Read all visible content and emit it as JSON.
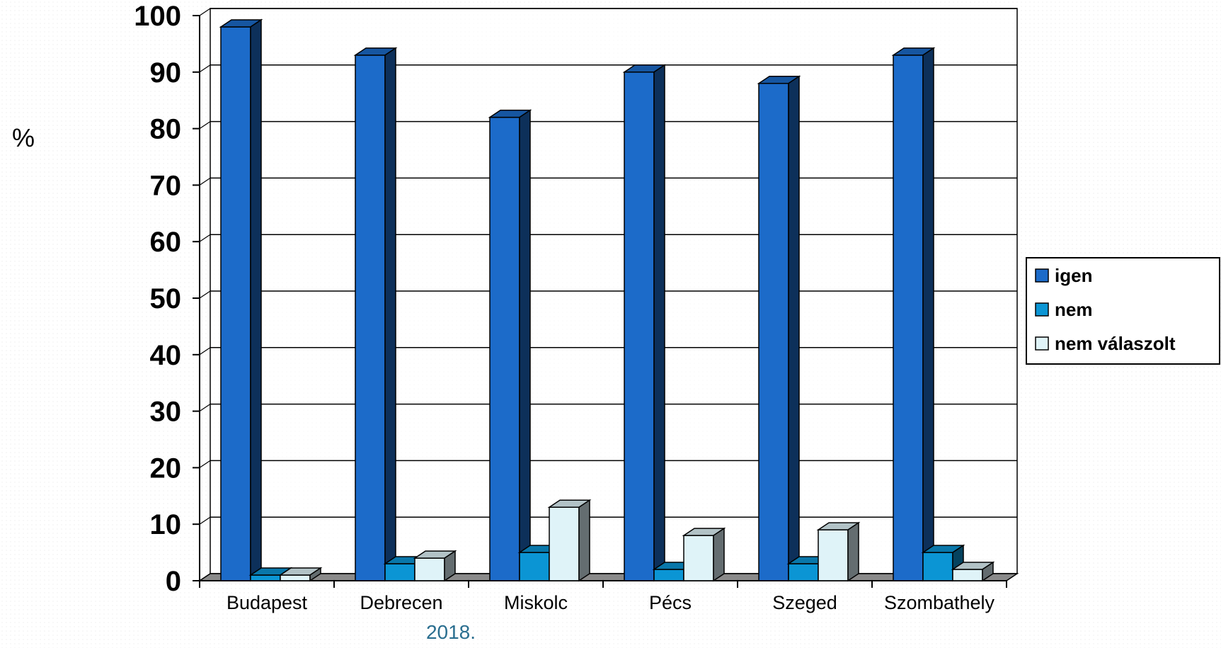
{
  "chart_data": {
    "type": "bar",
    "title": "",
    "ylabel": "%",
    "xlabel": "",
    "ylim": [
      0,
      100
    ],
    "yticks": [
      0,
      10,
      20,
      30,
      40,
      50,
      60,
      70,
      80,
      90,
      100
    ],
    "grid": true,
    "legend_position": "right",
    "categories": [
      "Budapest",
      "Debrecen",
      "Miskolc",
      "Pécs",
      "Szeged",
      "Szombathely"
    ],
    "series": [
      {
        "name": "igen",
        "values": [
          98,
          93,
          82,
          90,
          88,
          93
        ],
        "color": "#1c6bc9"
      },
      {
        "name": "nem",
        "values": [
          1,
          3,
          5,
          2,
          3,
          5
        ],
        "color": "#0b95d4"
      },
      {
        "name": "nem válaszolt",
        "values": [
          1,
          4,
          13,
          8,
          9,
          2
        ],
        "color": "#dff3f8"
      }
    ]
  },
  "footer": {
    "text": "2018."
  }
}
